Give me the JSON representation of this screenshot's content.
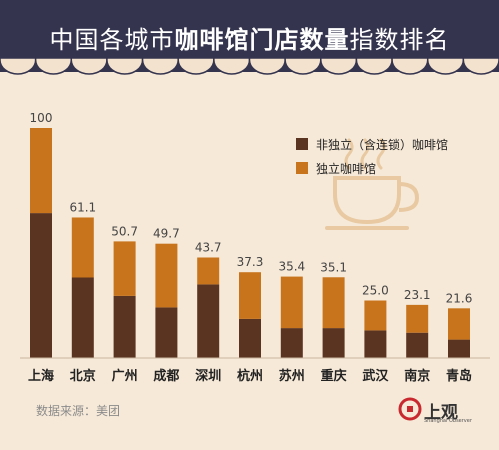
{
  "header": {
    "title_regular_1": "中国各城市",
    "title_bold": "咖啡馆门店数量",
    "title_regular_2": "指数排名"
  },
  "legend": [
    {
      "label": "非独立（含连锁）咖啡馆",
      "color": "#5A3321"
    },
    {
      "label": "独立咖啡馆",
      "color": "#C8741D"
    }
  ],
  "footer": {
    "source": "数据来源：美团",
    "logo_text": "上观",
    "logo_sub": "Shanghai Observer"
  },
  "colors": {
    "header_bg": "#35344F",
    "background": "#F6E9D8",
    "non_independent": "#5A3321",
    "independent": "#C8741D"
  },
  "chart_data": {
    "type": "bar",
    "stacked": true,
    "title": "中国各城市咖啡馆门店数量指数排名",
    "categories": [
      "上海",
      "北京",
      "广州",
      "成都",
      "深圳",
      "杭州",
      "苏州",
      "重庆",
      "武汉",
      "南京",
      "青岛"
    ],
    "totals": [
      "100",
      "61.1",
      "50.7",
      "49.7",
      "43.7",
      "37.3",
      "35.4",
      "35.1",
      "25.0",
      "23.1",
      "21.6"
    ],
    "series": [
      {
        "name": "非独立（含连锁）咖啡馆",
        "values": [
          63,
          35,
          27,
          22,
          32,
          17,
          13,
          13,
          12,
          11,
          8
        ]
      },
      {
        "name": "独立咖啡馆",
        "values": [
          37,
          26.1,
          23.7,
          27.7,
          11.7,
          20.3,
          22.4,
          22.1,
          13,
          12.1,
          13.6
        ]
      }
    ],
    "ylim": [
      0,
      100
    ],
    "grid": false,
    "legend_position": "top-right"
  }
}
